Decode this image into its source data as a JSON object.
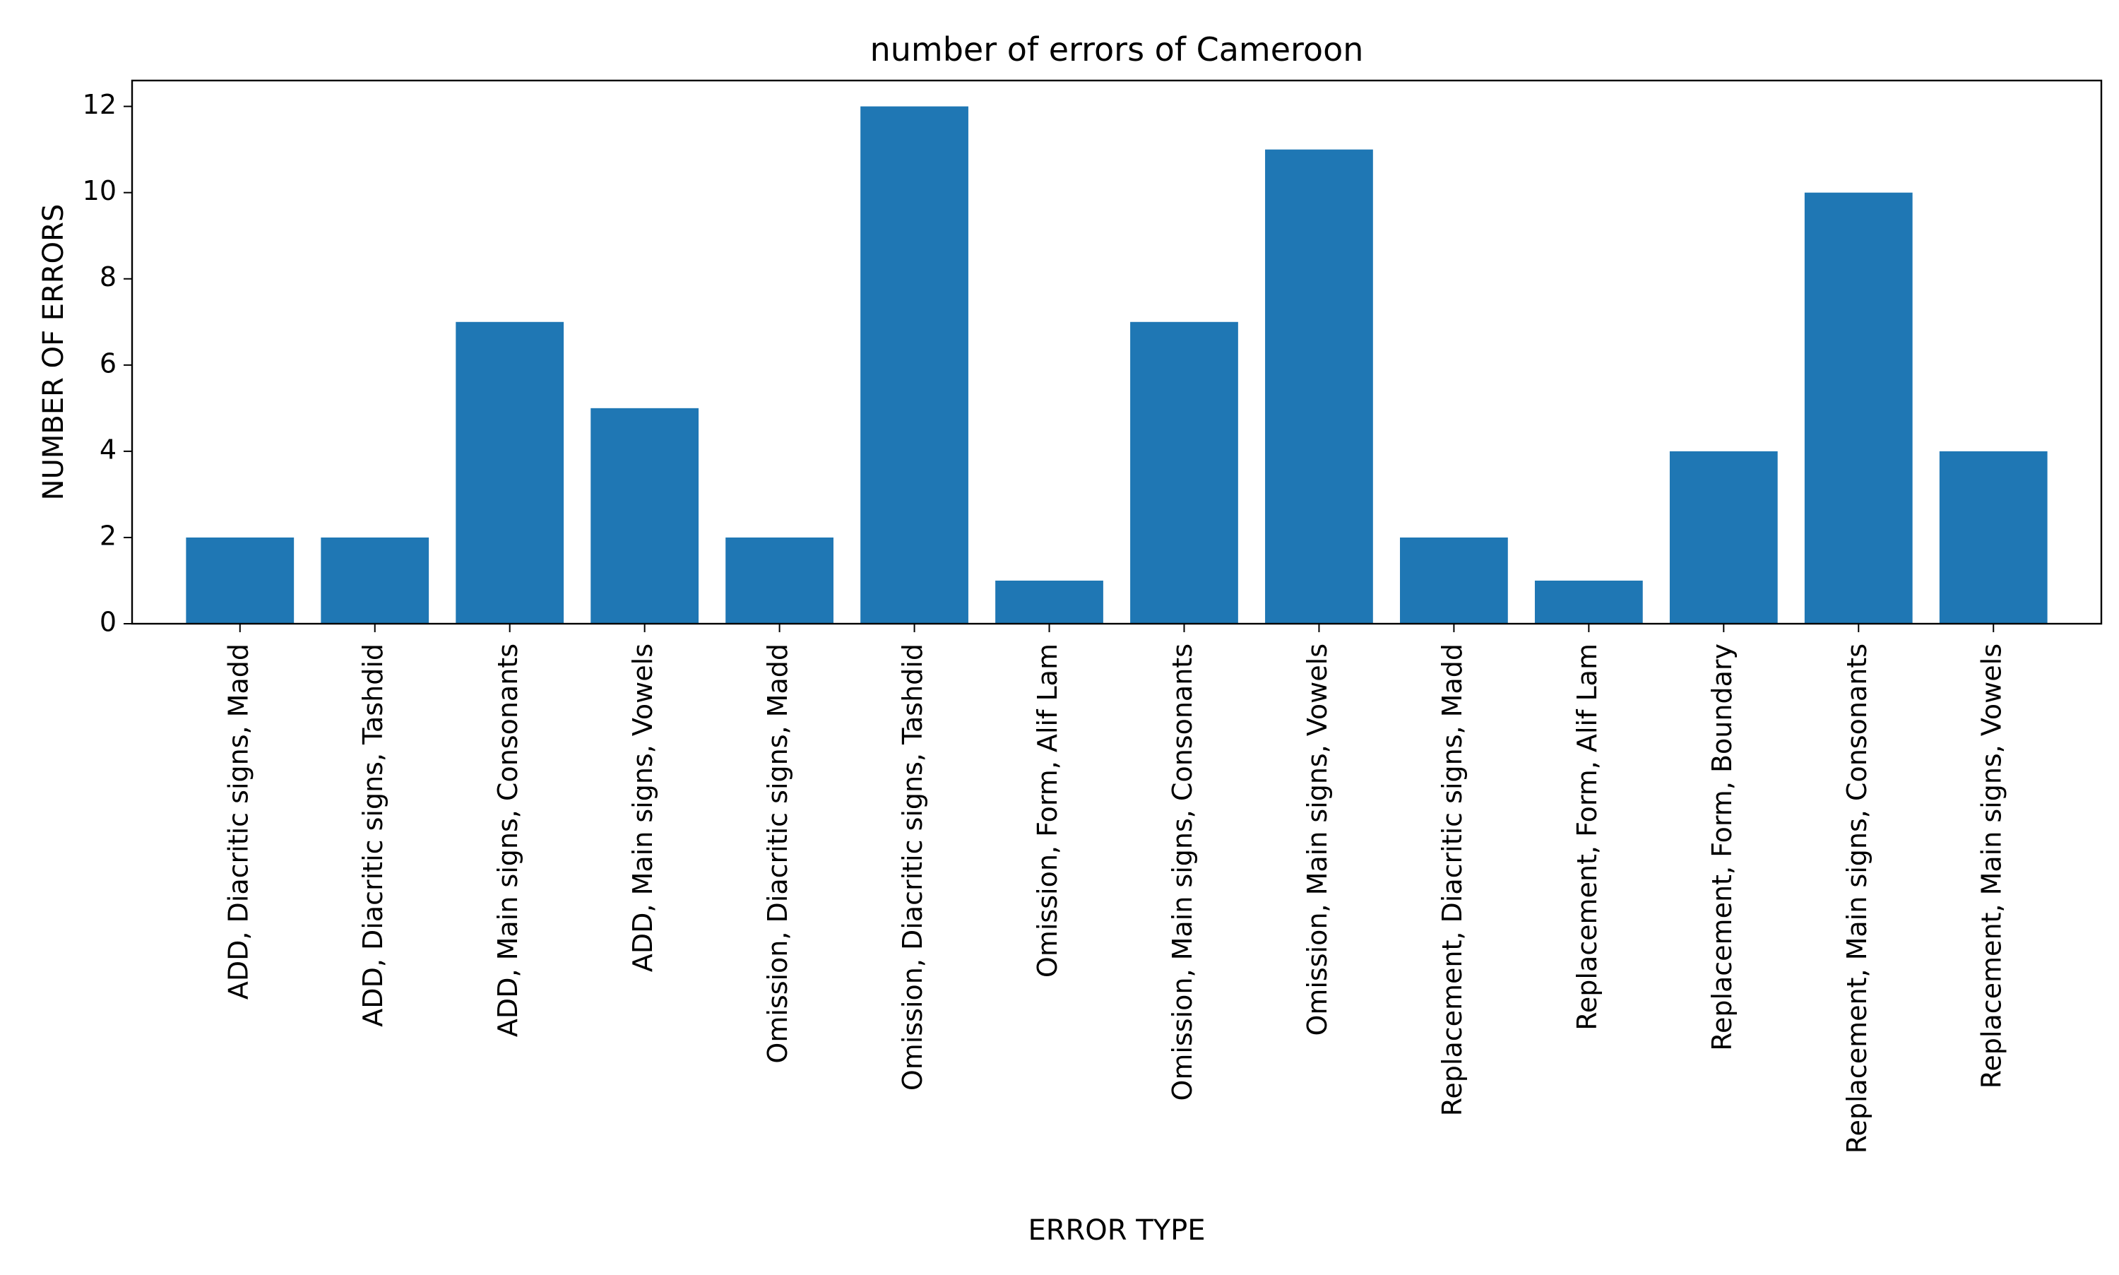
{
  "chart_data": {
    "type": "bar",
    "title": "number of errors of Cameroon",
    "xlabel": "ERROR TYPE",
    "ylabel": "NUMBER OF ERRORS",
    "categories": [
      "ADD, Diacritic signs, Madd",
      "ADD, Diacritic signs, Tashdid",
      "ADD, Main signs, Consonants",
      "ADD, Main signs, Vowels",
      "Omission, Diacritic signs, Madd",
      "Omission, Diacritic signs, Tashdid",
      "Omission, Form, Alif Lam",
      "Omission, Main signs, Consonants",
      "Omission, Main signs, Vowels",
      "Replacement, Diacritic signs, Madd",
      "Replacement, Form, Alif Lam",
      "Replacement, Form, Boundary",
      "Replacement, Main signs, Consonants",
      "Replacement, Main signs, Vowels"
    ],
    "values": [
      2,
      2,
      7,
      5,
      2,
      12,
      1,
      7,
      11,
      2,
      1,
      4,
      10,
      4
    ],
    "ylim": [
      0,
      12.6
    ],
    "yticks": [
      0,
      2,
      4,
      6,
      8,
      10,
      12
    ],
    "grid": false,
    "bar_color": "#1f77b4"
  }
}
